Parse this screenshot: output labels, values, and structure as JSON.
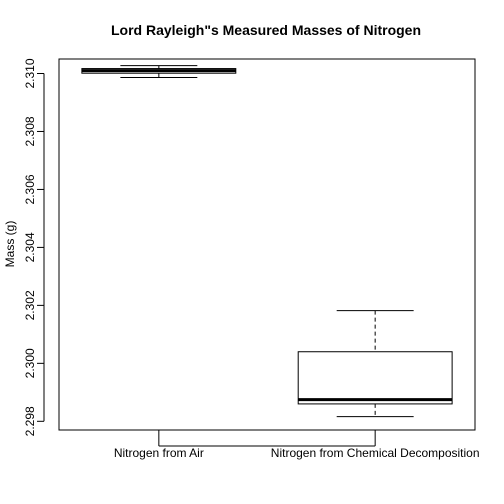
{
  "chart_data": {
    "type": "box",
    "title": "Lord Rayleigh\"s Measured Masses of Nitrogen",
    "xlabel": "",
    "ylabel": "Mass (g)",
    "ylim": [
      2.2977,
      2.3105
    ],
    "yticks": [
      2.298,
      2.3,
      2.302,
      2.304,
      2.306,
      2.308,
      2.31
    ],
    "ytick_labels": [
      "2.298",
      "2.300",
      "2.302",
      "2.304",
      "2.306",
      "2.308",
      "2.310"
    ],
    "categories": [
      "Nitrogen from Air",
      "Nitrogen from Chemical Decomposition"
    ],
    "boxes": [
      {
        "whisker_low": 2.30986,
        "q1": 2.31001,
        "median": 2.3101,
        "q3": 2.31017,
        "whisker_high": 2.31027
      },
      {
        "whisker_low": 2.29816,
        "q1": 2.2986,
        "median": 2.29875,
        "q3": 2.3004,
        "whisker_high": 2.30182
      }
    ],
    "grid": false
  }
}
